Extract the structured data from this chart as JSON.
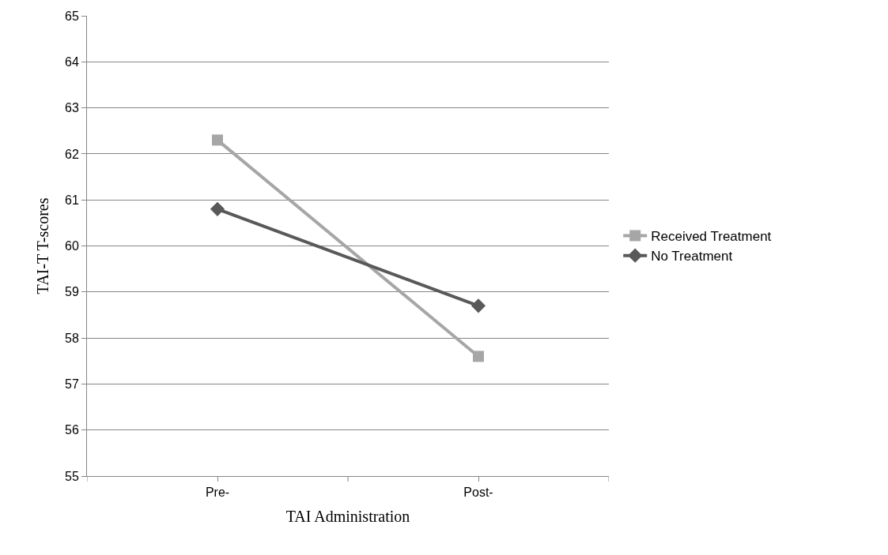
{
  "chart_data": {
    "type": "line",
    "xlabel": "TAI Administration",
    "ylabel": "TAI-T T-scores",
    "categories": [
      "Pre-",
      "Post-"
    ],
    "series": [
      {
        "name": "Received Treatment",
        "color": "#a6a6a6",
        "marker": "square",
        "values": [
          62.3,
          57.6
        ]
      },
      {
        "name": "No Treatment",
        "color": "#595959",
        "marker": "diamond",
        "values": [
          60.8,
          58.7
        ]
      }
    ],
    "ylim": [
      55,
      65
    ],
    "yticks": [
      55,
      56,
      57,
      58,
      59,
      60,
      61,
      62,
      63,
      64,
      65
    ],
    "grid": "y",
    "legend": "right",
    "line_style": "solid"
  }
}
